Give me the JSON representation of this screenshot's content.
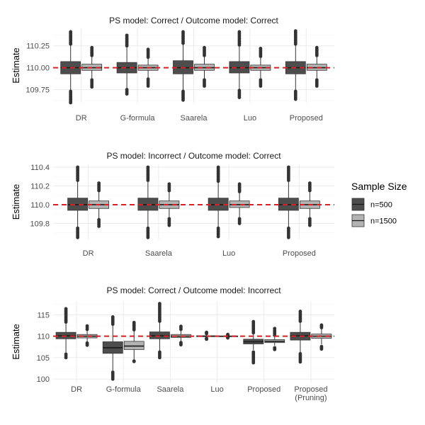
{
  "chart_data": [
    {
      "type": "boxplot",
      "title": "PS model: Correct / Outcome model: Correct",
      "ylabel": "Estimate",
      "xlabel": "",
      "ylim": [
        109.6,
        110.45
      ],
      "yticks": [
        109.75,
        110.0,
        110.25
      ],
      "ytick_labels": [
        "109.75",
        "110.00",
        "110.25"
      ],
      "reference_line": 110.0,
      "categories": [
        {
          "label": [
            "DR"
          ],
          "boxes": {
            "n=500": {
              "lw": 109.74,
              "q1": 109.93,
              "med": 110.0,
              "q3": 110.07,
              "uw": 110.26,
              "out_lo": [
                109.6,
                109.73
              ],
              "out_hi": [
                110.27,
                110.41
              ]
            },
            "n=1500": {
              "lw": 109.86,
              "q1": 109.97,
              "med": 110.0,
              "q3": 110.04,
              "uw": 110.13,
              "out_lo": [
                109.78,
                109.86
              ],
              "out_hi": [
                110.14,
                110.23
              ]
            }
          }
        },
        {
          "label": [
            "G-formula"
          ],
          "boxes": {
            "n=500": {
              "lw": 109.76,
              "q1": 109.94,
              "med": 110.0,
              "q3": 110.06,
              "uw": 110.24,
              "out_lo": [
                109.7,
                109.75
              ],
              "out_hi": [
                110.25,
                110.37
              ]
            },
            "n=1500": {
              "lw": 109.88,
              "q1": 109.97,
              "med": 110.0,
              "q3": 110.03,
              "uw": 110.11,
              "out_lo": [
                109.79,
                109.87
              ],
              "out_hi": [
                110.12,
                110.21
              ]
            }
          }
        },
        {
          "label": [
            "Saarela"
          ],
          "boxes": {
            "n=500": {
              "lw": 109.74,
              "q1": 109.93,
              "med": 110.0,
              "q3": 110.08,
              "uw": 110.27,
              "out_lo": [
                109.63,
                109.73
              ],
              "out_hi": [
                110.28,
                110.41
              ]
            },
            "n=1500": {
              "lw": 109.86,
              "q1": 109.97,
              "med": 110.0,
              "q3": 110.04,
              "uw": 110.13,
              "out_lo": [
                109.79,
                109.86
              ],
              "out_hi": [
                110.14,
                110.23
              ]
            }
          }
        },
        {
          "label": [
            "Luo"
          ],
          "boxes": {
            "n=500": {
              "lw": 109.75,
              "q1": 109.94,
              "med": 110.0,
              "q3": 110.07,
              "uw": 110.25,
              "out_lo": [
                109.66,
                109.74
              ],
              "out_hi": [
                110.26,
                110.41
              ]
            },
            "n=1500": {
              "lw": 109.87,
              "q1": 109.97,
              "med": 110.0,
              "q3": 110.03,
              "uw": 110.12,
              "out_lo": [
                109.79,
                109.86
              ],
              "out_hi": [
                110.13,
                110.22
              ]
            }
          }
        },
        {
          "label": [
            "Proposed"
          ],
          "boxes": {
            "n=500": {
              "lw": 109.74,
              "q1": 109.93,
              "med": 110.0,
              "q3": 110.07,
              "uw": 110.26,
              "out_lo": [
                109.64,
                109.73
              ],
              "out_hi": [
                110.27,
                110.42
              ]
            },
            "n=1500": {
              "lw": 109.86,
              "q1": 109.97,
              "med": 110.0,
              "q3": 110.04,
              "uw": 110.13,
              "out_lo": [
                109.79,
                109.86
              ],
              "out_hi": [
                110.14,
                110.23
              ]
            }
          }
        }
      ]
    },
    {
      "type": "boxplot",
      "title": "PS model: Incorrect / Outcome model: Correct",
      "ylabel": "Estimate",
      "xlabel": "",
      "ylim": [
        109.63,
        110.43
      ],
      "yticks": [
        109.8,
        110.0,
        110.2,
        110.4
      ],
      "ytick_labels": [
        "109.8",
        "110.0",
        "110.2",
        "110.4"
      ],
      "reference_line": 110.0,
      "categories": [
        {
          "label": [
            "DR"
          ],
          "boxes": {
            "n=500": {
              "lw": 109.76,
              "q1": 109.94,
              "med": 110.0,
              "q3": 110.07,
              "uw": 110.25,
              "out_lo": [
                109.65,
                109.75
              ],
              "out_hi": [
                110.26,
                110.4
              ]
            },
            "n=1500": {
              "lw": 109.85,
              "q1": 109.96,
              "med": 110.0,
              "q3": 110.04,
              "uw": 110.14,
              "out_lo": [
                109.77,
                109.84
              ],
              "out_hi": [
                110.15,
                110.23
              ]
            }
          }
        },
        {
          "label": [
            "Saarela"
          ],
          "boxes": {
            "n=500": {
              "lw": 109.76,
              "q1": 109.94,
              "med": 110.0,
              "q3": 110.07,
              "uw": 110.25,
              "out_lo": [
                109.65,
                109.75
              ],
              "out_hi": [
                110.26,
                110.4
              ]
            },
            "n=1500": {
              "lw": 109.86,
              "q1": 109.96,
              "med": 110.0,
              "q3": 110.04,
              "uw": 110.14,
              "out_lo": [
                109.78,
                109.85
              ],
              "out_hi": [
                110.15,
                110.22
              ]
            }
          }
        },
        {
          "label": [
            "Luo"
          ],
          "boxes": {
            "n=500": {
              "lw": 109.76,
              "q1": 109.94,
              "med": 110.0,
              "q3": 110.07,
              "uw": 110.24,
              "out_lo": [
                109.66,
                109.75
              ],
              "out_hi": [
                110.25,
                110.4
              ]
            },
            "n=1500": {
              "lw": 109.86,
              "q1": 109.97,
              "med": 110.0,
              "q3": 110.04,
              "uw": 110.13,
              "out_lo": [
                109.8,
                109.85
              ],
              "out_hi": [
                110.14,
                110.22
              ]
            }
          }
        },
        {
          "label": [
            "Proposed"
          ],
          "boxes": {
            "n=500": {
              "lw": 109.76,
              "q1": 109.94,
              "med": 110.0,
              "q3": 110.07,
              "uw": 110.25,
              "out_lo": [
                109.65,
                109.75
              ],
              "out_hi": [
                110.26,
                110.4
              ]
            },
            "n=1500": {
              "lw": 109.86,
              "q1": 109.96,
              "med": 110.0,
              "q3": 110.04,
              "uw": 110.14,
              "out_lo": [
                109.78,
                109.85
              ],
              "out_hi": [
                110.15,
                110.23
              ]
            }
          }
        }
      ]
    },
    {
      "type": "boxplot",
      "title": "PS model: Correct / Outcome model: Incorrect",
      "ylabel": "Estimate",
      "xlabel": "",
      "ylim": [
        99.2,
        118.2
      ],
      "yticks": [
        100,
        105,
        110,
        115
      ],
      "ytick_labels": [
        "100",
        "105",
        "110",
        "115"
      ],
      "reference_line": 110.0,
      "categories": [
        {
          "label": [
            "DR"
          ],
          "boxes": {
            "n=500": {
              "lw": 106.0,
              "q1": 109.4,
              "med": 110.1,
              "q3": 110.9,
              "uw": 113.0,
              "out_lo": [
                105.0,
                105.8
              ],
              "out_hi": [
                113.3,
                116.4
              ]
            },
            "n=1500": {
              "lw": 108.5,
              "q1": 109.6,
              "med": 110.0,
              "q3": 110.4,
              "uw": 111.5,
              "out_lo": [
                107.9,
                108.4
              ],
              "out_hi": [
                111.6,
                112.4
              ]
            }
          }
        },
        {
          "label": [
            "G-formula"
          ],
          "boxes": {
            "n=500": {
              "lw": 102.0,
              "q1": 106.0,
              "med": 107.3,
              "q3": 108.7,
              "uw": 112.5,
              "out_lo": [
                100.0,
                101.6
              ],
              "out_hi": [
                112.8,
                114.5
              ]
            },
            "n=1500": {
              "lw": 104.2,
              "q1": 106.9,
              "med": 107.7,
              "q3": 108.8,
              "uw": 111.3,
              "out_lo": [
                104.1,
                104.2
              ],
              "out_hi": [
                111.5,
                113.2
              ]
            }
          }
        },
        {
          "label": [
            "Saarela"
          ],
          "boxes": {
            "n=500": {
              "lw": 106.5,
              "q1": 109.4,
              "med": 110.1,
              "q3": 111.0,
              "uw": 113.2,
              "out_lo": [
                105.0,
                106.3
              ],
              "out_hi": [
                113.5,
                117.6
              ]
            },
            "n=1500": {
              "lw": 108.6,
              "q1": 109.7,
              "med": 110.0,
              "q3": 110.4,
              "uw": 111.4,
              "out_lo": [
                108.0,
                108.5
              ],
              "out_hi": [
                111.6,
                112.3
              ]
            }
          }
        },
        {
          "label": [
            "Luo"
          ],
          "boxes": {
            "n=500": {
              "lw": 109.6,
              "q1": 109.9,
              "med": 110.0,
              "q3": 110.1,
              "uw": 110.4,
              "out_lo": [
                109.3,
                109.5
              ],
              "out_hi": [
                110.6,
                110.9
              ]
            },
            "n=1500": {
              "lw": 109.8,
              "q1": 109.95,
              "med": 110.0,
              "q3": 110.05,
              "uw": 110.2,
              "out_lo": [
                109.6,
                109.75
              ],
              "out_hi": [
                110.25,
                110.4
              ]
            }
          }
        },
        {
          "label": [
            "Proposed"
          ],
          "boxes": {
            "n=500": {
              "lw": 106.8,
              "q1": 108.2,
              "med": 108.7,
              "q3": 109.3,
              "uw": 110.5,
              "out_lo": [
                103.8,
                106.3
              ],
              "out_hi": [
                110.8,
                113.4
              ]
            },
            "n=1500": {
              "lw": 107.8,
              "q1": 108.5,
              "med": 108.8,
              "q3": 109.2,
              "uw": 110.0,
              "out_lo": [
                106.9,
                107.3
              ],
              "out_hi": [
                110.2,
                111.8
              ]
            }
          }
        },
        {
          "label": [
            "Proposed",
            "(Pruning)"
          ],
          "boxes": {
            "n=500": {
              "lw": 106.2,
              "q1": 109.1,
              "med": 110.1,
              "q3": 110.9,
              "uw": 113.2,
              "out_lo": [
                104.0,
                105.9
              ],
              "out_hi": [
                113.5,
                115.8
              ]
            },
            "n=1500": {
              "lw": 108.1,
              "q1": 109.5,
              "med": 110.0,
              "q3": 110.5,
              "uw": 111.8,
              "out_lo": [
                107.0,
                107.6
              ],
              "out_hi": [
                112.0,
                112.6
              ]
            }
          }
        }
      ]
    }
  ],
  "legend": {
    "title": "Sample Size",
    "items": [
      {
        "label": "n=500",
        "color": "#4d4d4d"
      },
      {
        "label": "n=1500",
        "color": "#b3b3b3"
      }
    ],
    "position": "right"
  },
  "colors": {
    "reference_line": "#e41a1c",
    "box_outline": "#333333",
    "outlier": "#333333",
    "median": "#1a1a1a"
  }
}
